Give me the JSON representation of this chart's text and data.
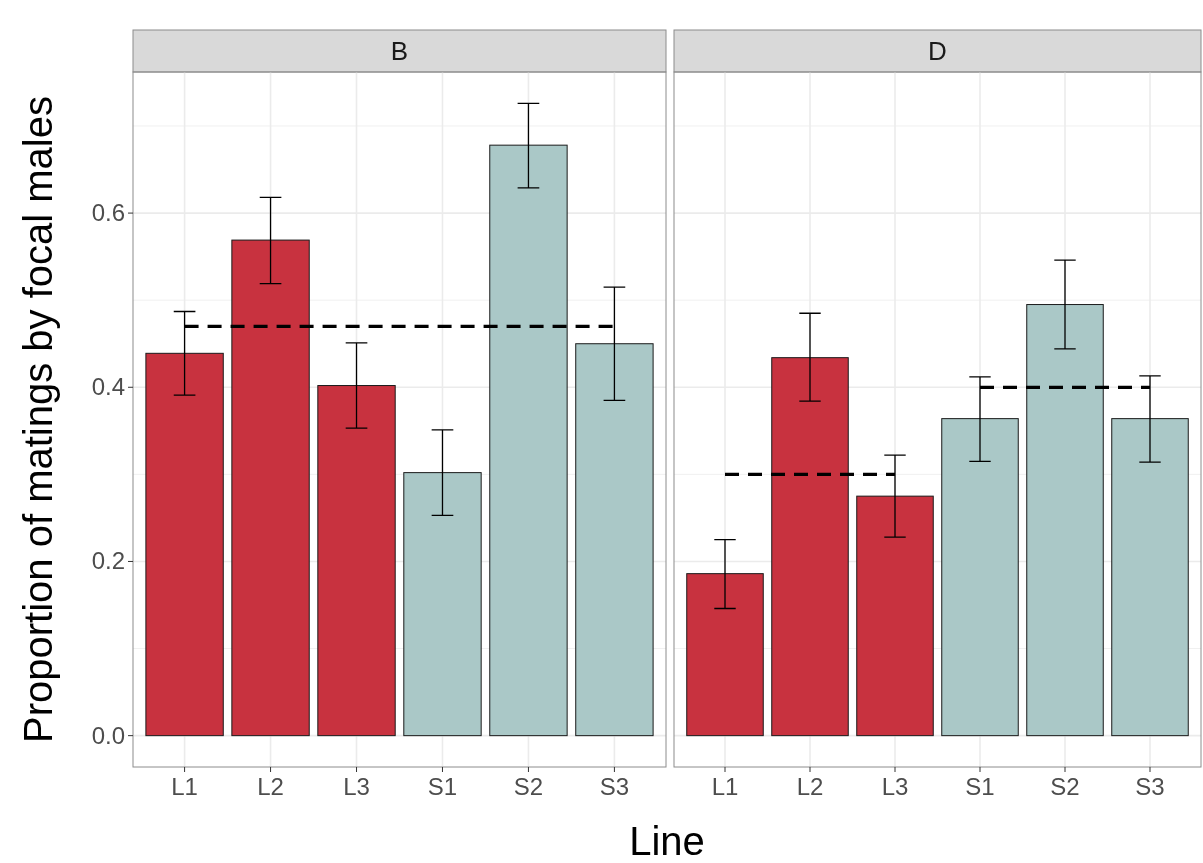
{
  "chart_data": [
    {
      "type": "bar",
      "title": "B",
      "xlabel": "Line",
      "ylabel": "Proportion of matings by focal males",
      "categories": [
        "L1",
        "L2",
        "L3",
        "S1",
        "S2",
        "S3"
      ],
      "series": [
        {
          "values": [
            0.439,
            0.569,
            0.402,
            0.302,
            0.678,
            0.45
          ],
          "colors": [
            "#c8323f",
            "#c8323f",
            "#c8323f",
            "#aac8c7",
            "#aac8c7",
            "#aac8c7"
          ],
          "errors": [
            [
              0.391,
              0.487
            ],
            [
              0.519,
              0.618
            ],
            [
              0.353,
              0.451
            ],
            [
              0.253,
              0.351
            ],
            [
              0.629,
              0.726
            ],
            [
              0.385,
              0.515
            ]
          ]
        },
        {
          "type": "line",
          "color": "#000000",
          "line_style": "dashed",
          "values": [
            0.47,
            0.47,
            0.47,
            0.47,
            0.47,
            0.47
          ]
        }
      ],
      "ylim": [
        -0.036,
        0.762
      ],
      "yticks": [
        {
          "value": 0,
          "label": "0.0"
        },
        0.2,
        0.4,
        0.6
      ],
      "grid": true
    },
    {
      "type": "bar",
      "title": "D",
      "categories": [
        "L1",
        "L2",
        "L3",
        "S1",
        "S2",
        "S3"
      ],
      "series": [
        {
          "values": [
            0.186,
            0.434,
            0.275,
            0.364,
            0.495,
            0.364
          ],
          "colors": [
            "#c8323f",
            "#c8323f",
            "#c8323f",
            "#aac8c7",
            "#aac8c7",
            "#aac8c7"
          ],
          "errors": [
            [
              0.146,
              0.225
            ],
            [
              0.384,
              0.485
            ],
            [
              0.228,
              0.322
            ],
            [
              0.315,
              0.412
            ],
            [
              0.444,
              0.546
            ],
            [
              0.314,
              0.413
            ]
          ]
        },
        {
          "type": "line",
          "color": "#000000",
          "line_style": "dashed",
          "values": [
            0.3,
            0.3,
            0.3,
            null,
            null,
            null
          ]
        },
        {
          "type": "line",
          "color": "#000000",
          "line_style": "dashed",
          "values": [
            null,
            null,
            null,
            0.4,
            0.4,
            0.4
          ]
        }
      ],
      "ylim": [
        -0.036,
        0.762
      ],
      "yticks": [
        0,
        0.2,
        0.4,
        0.6
      ],
      "grid": true,
      "tick_labels": "x"
    }
  ]
}
